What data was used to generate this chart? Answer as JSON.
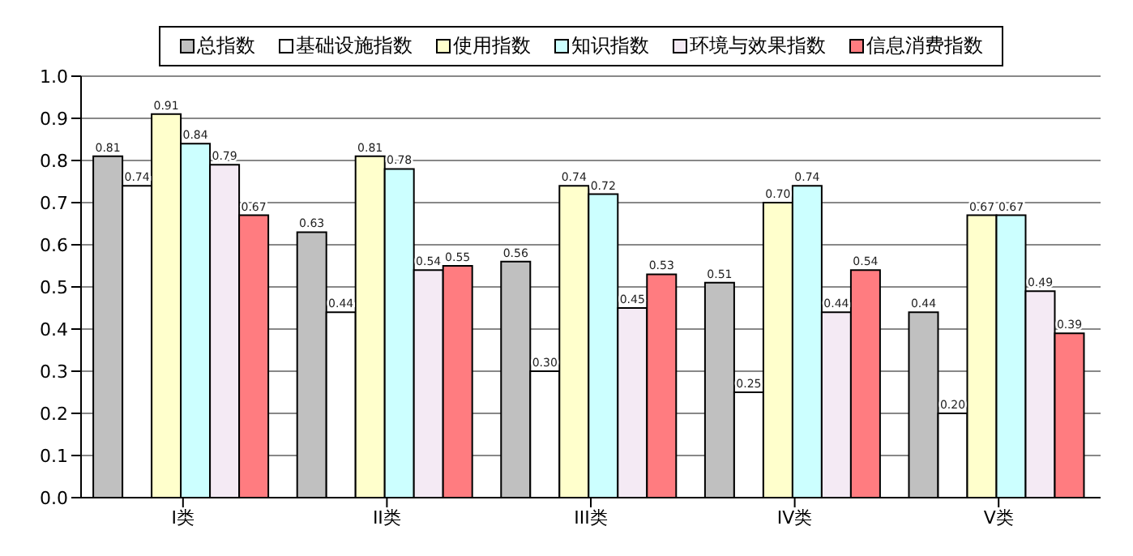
{
  "chart_data": {
    "type": "bar",
    "categories": [
      "I类",
      "II类",
      "III类",
      "IV类",
      "V类"
    ],
    "series": [
      {
        "name": "总指数",
        "color": "#c0c0c0",
        "values": [
          0.81,
          0.63,
          0.56,
          0.51,
          0.44
        ],
        "value_labels": [
          "0.81",
          "0.63",
          "0.56",
          "0.51",
          "0.44"
        ]
      },
      {
        "name": "基础设施指数",
        "color": "#ffffff",
        "values": [
          0.74,
          0.44,
          0.3,
          0.25,
          0.2
        ],
        "value_labels": [
          "0.74",
          "0.44",
          "0.30",
          "0.25",
          "0.20"
        ]
      },
      {
        "name": "使用指数",
        "color": "#ffffcc",
        "values": [
          0.91,
          0.81,
          0.74,
          0.7,
          0.67
        ],
        "value_labels": [
          "0.91",
          "0.81",
          "0.74",
          "0.70",
          "0.67"
        ]
      },
      {
        "name": "知识指数",
        "color": "#ccffff",
        "values": [
          0.84,
          0.78,
          0.72,
          0.74,
          0.67
        ],
        "value_labels": [
          "0.84",
          "0.78",
          "0.72",
          "0.74",
          "0.67"
        ]
      },
      {
        "name": "环境与效果指数",
        "color": "#f4eaf4",
        "values": [
          0.79,
          0.54,
          0.45,
          0.44,
          0.49
        ],
        "value_labels": [
          "0.79",
          "0.54",
          "0.45",
          "0.44",
          "0.49"
        ]
      },
      {
        "name": "信息消费指数",
        "color": "#ff7c80",
        "values": [
          0.67,
          0.55,
          0.53,
          0.54,
          0.39
        ],
        "value_labels": [
          "0.67",
          "0.55",
          "0.53",
          "0.54",
          "0.39"
        ]
      }
    ],
    "ylim": [
      0,
      1
    ],
    "yticks": [
      {
        "value": 0,
        "label": "0.0"
      },
      {
        "value": 0.1,
        "label": "0.1"
      },
      {
        "value": 0.2,
        "label": "0.2"
      },
      {
        "value": 0.3,
        "label": "0.3"
      },
      {
        "value": 0.4,
        "label": "0.4"
      },
      {
        "value": 0.5,
        "label": "0.5"
      },
      {
        "value": 0.6,
        "label": "0.6"
      },
      {
        "value": 0.7,
        "label": "0.7"
      },
      {
        "value": 0.8,
        "label": "0.8"
      },
      {
        "value": 0.9,
        "label": "0.9"
      },
      {
        "value": 1,
        "label": "1.0"
      }
    ],
    "grid": "y",
    "legend": "top"
  }
}
